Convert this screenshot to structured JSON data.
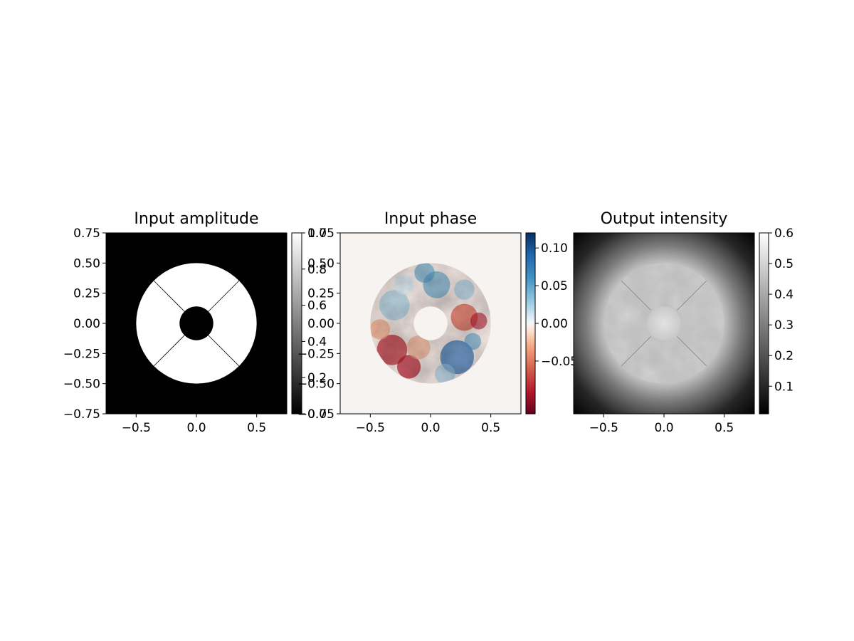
{
  "chart_data": [
    {
      "type": "heatmap",
      "title": "Input amplitude",
      "colormap": "gray",
      "xlim": [
        -0.75,
        0.75
      ],
      "ylim": [
        -0.75,
        0.75
      ],
      "xticks": [
        -0.5,
        0.0,
        0.5
      ],
      "xtick_labels": [
        "−0.5",
        "0.0",
        "0.5"
      ],
      "yticks": [
        0.75,
        0.5,
        0.25,
        0.0,
        -0.25,
        -0.5,
        -0.75
      ],
      "ytick_labels": [
        "0.75",
        "0.50",
        "0.25",
        "0.00",
        "−0.25",
        "−0.50",
        "−0.75"
      ],
      "colorbar": {
        "range": [
          0,
          1
        ],
        "ticks": [
          0.0,
          0.2,
          0.4,
          0.6,
          0.8,
          1.0
        ],
        "tick_labels": [
          "0.0",
          "0.2",
          "0.4",
          "0.6",
          "0.8",
          "1.0"
        ]
      },
      "content": {
        "shape": "annulus",
        "outer_radius": 0.5,
        "inner_radius": 0.14,
        "spider_angles_deg": [
          45,
          135,
          225,
          315
        ],
        "value_inside": 1,
        "value_outside": 0
      }
    },
    {
      "type": "heatmap",
      "title": "Input phase",
      "colormap": "RdBu",
      "xlim": [
        -0.75,
        0.75
      ],
      "ylim": [
        -0.75,
        0.75
      ],
      "xticks": [
        -0.5,
        0.0,
        0.5
      ],
      "xtick_labels": [
        "−0.5",
        "0.0",
        "0.5"
      ],
      "yticks": [
        0.75,
        0.5,
        0.25,
        0.0,
        -0.25,
        -0.5,
        -0.75
      ],
      "ytick_labels": [
        "0.75",
        "0.50",
        "0.25",
        "0.00",
        "−0.25",
        "−0.50",
        "−0.75"
      ],
      "colorbar": {
        "range": [
          -0.12,
          0.12
        ],
        "ticks": [
          0.1,
          0.05,
          0.0,
          -0.05
        ],
        "tick_labels": [
          "0.10",
          "0.05",
          "0.00",
          "−0.05"
        ]
      },
      "content": {
        "shape": "annulus",
        "outer_radius": 0.5,
        "inner_radius": 0.14,
        "value_outside": 0.0,
        "texture": "random phase screen, approx −0.1 to 0.1"
      }
    },
    {
      "type": "heatmap",
      "title": "Output intensity",
      "colormap": "gray",
      "xlim": [
        -0.75,
        0.75
      ],
      "ylim": [
        -0.75,
        0.75
      ],
      "xticks": [
        -0.5,
        0.0,
        0.5
      ],
      "xtick_labels": [
        "−0.5",
        "0.0",
        "0.5"
      ],
      "yticks": [],
      "ytick_labels": [],
      "colorbar": {
        "range": [
          0.01,
          0.6
        ],
        "ticks": [
          0.6,
          0.5,
          0.4,
          0.3,
          0.2,
          0.1
        ],
        "tick_labels": [
          "0.6",
          "0.5",
          "0.4",
          "0.3",
          "0.2",
          "0.1"
        ]
      },
      "content": {
        "shape": "annulus with halo",
        "outer_radius": 0.5,
        "inner_radius": 0.14,
        "pupil_level": 0.45,
        "center_level": 0.5,
        "halo_level": 0.55
      }
    }
  ]
}
